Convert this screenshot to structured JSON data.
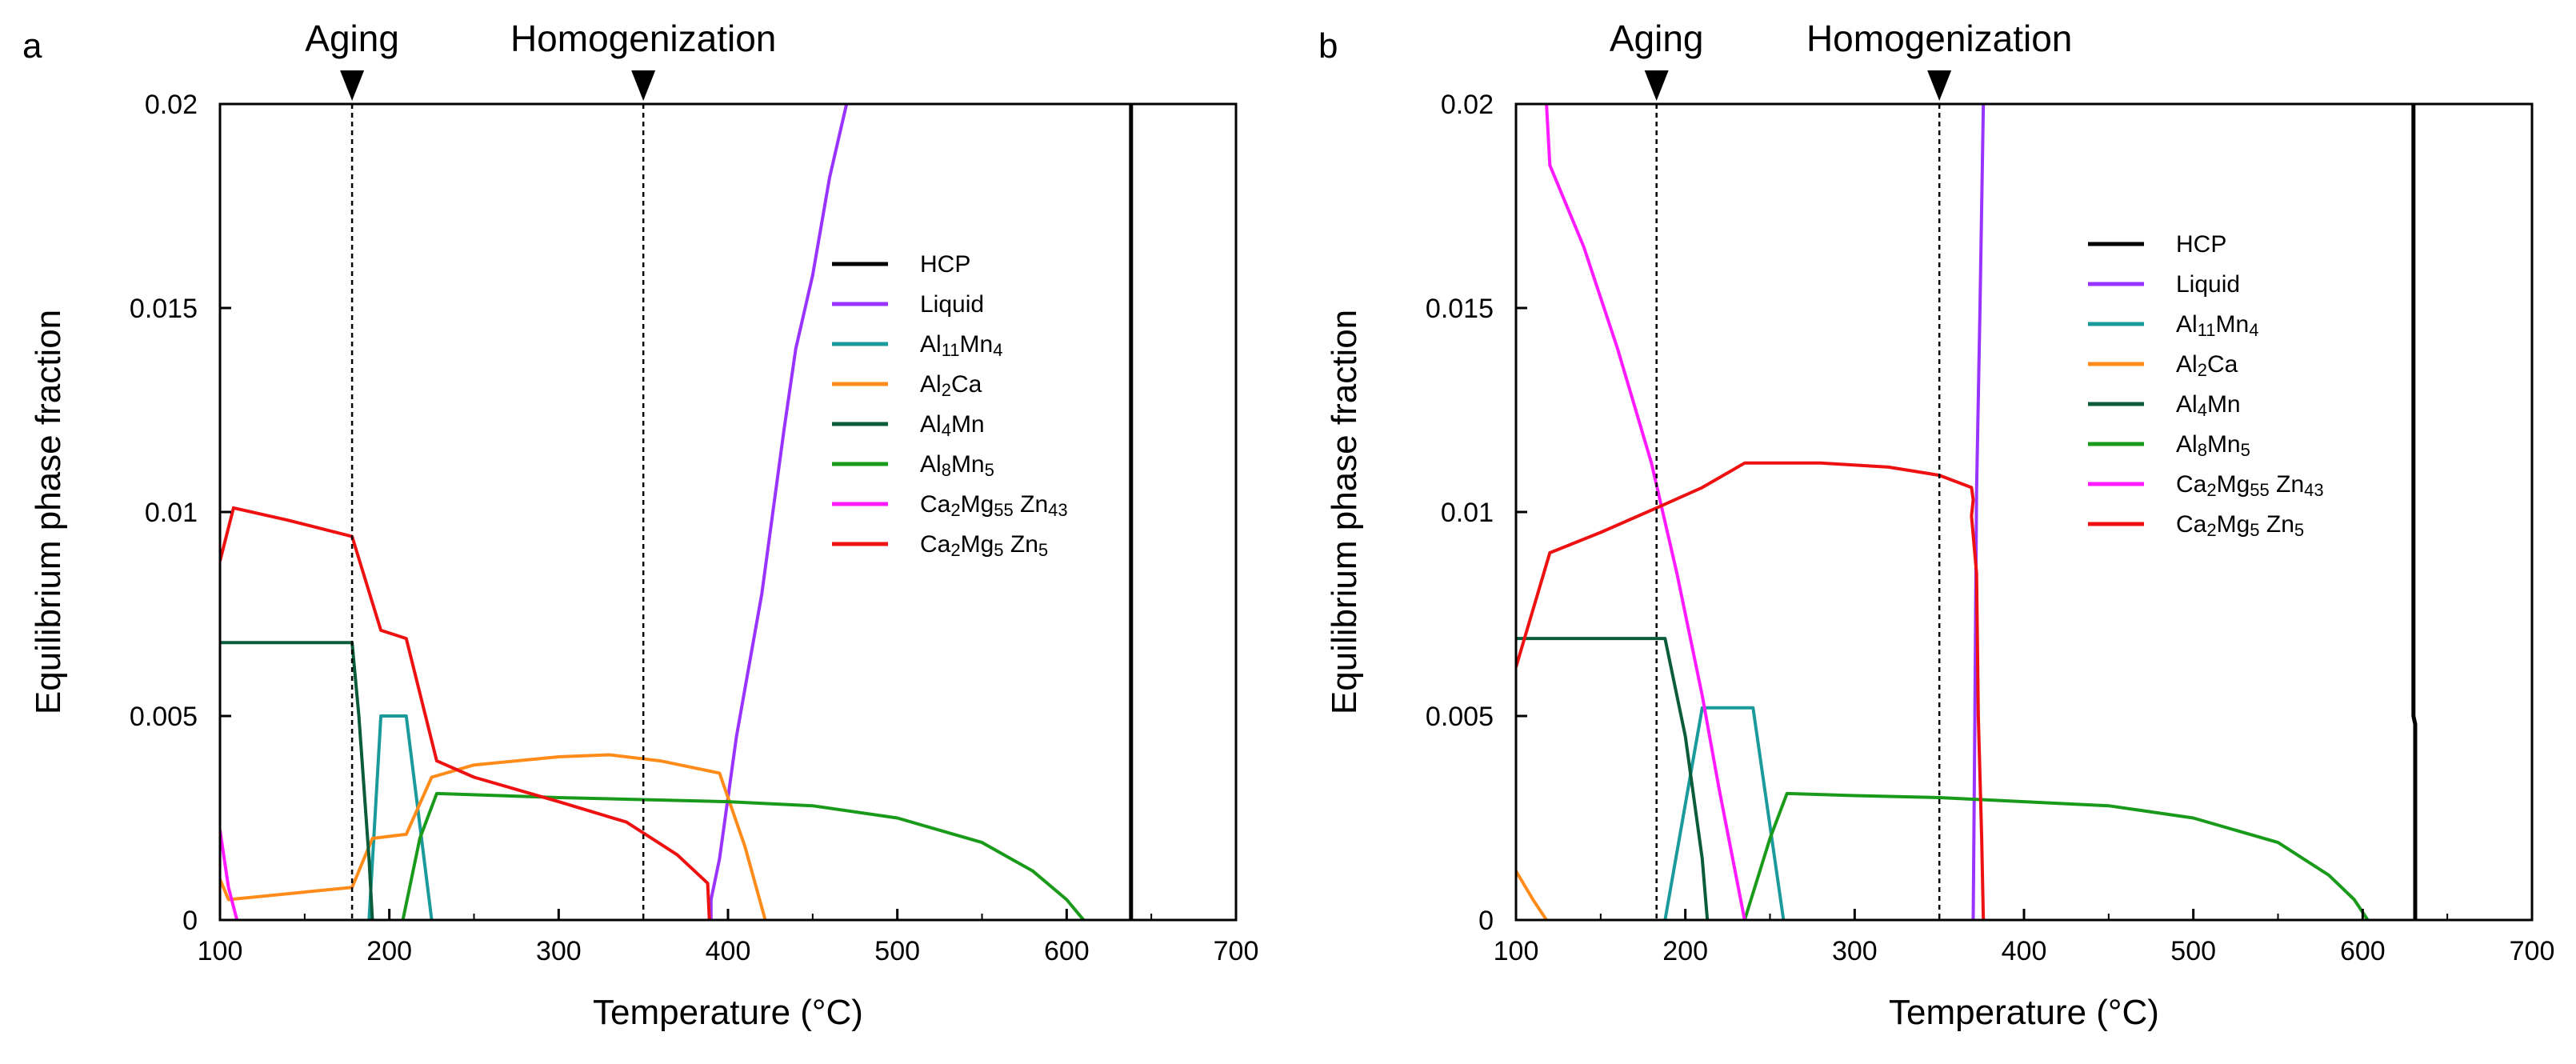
{
  "chart_data": [
    {
      "type": "line",
      "panel_label": "a",
      "xlabel": "Temperature (°C)",
      "ylabel": "Equilibrium phase fraction",
      "xlim": [
        100,
        700
      ],
      "ylim": [
        0,
        0.02
      ],
      "x_ticks": [
        "100",
        "200",
        "300",
        "400",
        "500",
        "600",
        "700"
      ],
      "y_ticks": [
        "0",
        "0.005",
        "0.01",
        "0.015",
        "0.02"
      ],
      "grid": false,
      "legend_position": "right",
      "annotations": [
        {
          "label": "Aging",
          "x": 178
        },
        {
          "label": "Homogenization",
          "x": 350
        }
      ],
      "series": [
        {
          "name": "HCP",
          "sub": "",
          "color": "#000000",
          "points": [
            [
              638,
              0
            ],
            [
              638,
              0.02
            ]
          ]
        },
        {
          "name": "Liquid",
          "sub": "",
          "color": "#9933ff",
          "points": [
            [
              390,
              0
            ],
            [
              390,
              0.0005
            ],
            [
              395,
              0.0015
            ],
            [
              405,
              0.0045
            ],
            [
              420,
              0.008
            ],
            [
              433,
              0.012
            ],
            [
              440,
              0.014
            ],
            [
              450,
              0.0158
            ],
            [
              460,
              0.0182
            ],
            [
              470,
              0.02
            ]
          ]
        },
        {
          "name": "Al11Mn4",
          "sub": "Al<sub>11</sub>Mn<sub>4</sub>",
          "color": "#1a9a9a",
          "points": [
            [
              188,
              0
            ],
            [
              195,
              0.005
            ],
            [
              210,
              0.005
            ],
            [
              225,
              0
            ]
          ]
        },
        {
          "name": "Al2Ca",
          "sub": "Al<sub>2</sub>Ca",
          "color": "#ff8c1a",
          "points": [
            [
              100,
              0.001
            ],
            [
              105,
              0.0005
            ],
            [
              178,
              0.0008
            ],
            [
              190,
              0.002
            ],
            [
              210,
              0.0021
            ],
            [
              225,
              0.0035
            ],
            [
              250,
              0.0038
            ],
            [
              300,
              0.004
            ],
            [
              330,
              0.00405
            ],
            [
              360,
              0.0039
            ],
            [
              395,
              0.0036
            ],
            [
              410,
              0.0018
            ],
            [
              422,
              0
            ]
          ]
        },
        {
          "name": "Al4Mn",
          "sub": "Al<sub>4</sub>Mn",
          "color": "#0a5c3a",
          "points": [
            [
              100,
              0.0068
            ],
            [
              178,
              0.0068
            ],
            [
              182,
              0.005
            ],
            [
              188,
              0.0015
            ],
            [
              190,
              0
            ]
          ]
        },
        {
          "name": "Al8Mn5",
          "sub": "Al<sub>8</sub>Mn<sub>5</sub>",
          "color": "#1a9a1a",
          "points": [
            [
              208,
              0
            ],
            [
              218,
              0.002
            ],
            [
              228,
              0.0031
            ],
            [
              300,
              0.003
            ],
            [
              400,
              0.0029
            ],
            [
              450,
              0.0028
            ],
            [
              500,
              0.0025
            ],
            [
              550,
              0.0019
            ],
            [
              580,
              0.0012
            ],
            [
              600,
              0.0005
            ],
            [
              610,
              0
            ]
          ]
        },
        {
          "name": "Ca2Mg55Zn43",
          "sub": "Ca<sub>2</sub>Mg<sub>55</sub> Zn<sub>43</sub>",
          "color": "#ff1aff",
          "points": [
            [
              100,
              0.0022
            ],
            [
              105,
              0.0008
            ],
            [
              110,
              0
            ]
          ]
        },
        {
          "name": "Ca2Mg5Zn5",
          "sub": "Ca<sub>2</sub>Mg<sub>5</sub> Zn<sub>5</sub>",
          "color": "#ee1111",
          "points": [
            [
              100,
              0.0088
            ],
            [
              108,
              0.0101
            ],
            [
              140,
              0.0098
            ],
            [
              178,
              0.0094
            ],
            [
              195,
              0.0071
            ],
            [
              210,
              0.0069
            ],
            [
              228,
              0.0039
            ],
            [
              250,
              0.0035
            ],
            [
              300,
              0.0029
            ],
            [
              340,
              0.0024
            ],
            [
              370,
              0.0016
            ],
            [
              388,
              0.0009
            ],
            [
              389,
              0
            ]
          ]
        }
      ]
    },
    {
      "type": "line",
      "panel_label": "b",
      "xlabel": "Temperature (°C)",
      "ylabel": "Equilibrium phase fraction",
      "xlim": [
        100,
        700
      ],
      "ylim": [
        0,
        0.02
      ],
      "x_ticks": [
        "100",
        "200",
        "300",
        "400",
        "500",
        "600",
        "700"
      ],
      "y_ticks": [
        "0",
        "0.005",
        "0.01",
        "0.015",
        "0.02"
      ],
      "grid": false,
      "legend_position": "right",
      "annotations": [
        {
          "label": "Aging",
          "x": 183
        },
        {
          "label": "Homogenization",
          "x": 350
        }
      ],
      "series": [
        {
          "name": "HCP",
          "sub": "",
          "color": "#000000",
          "points": [
            [
              631,
              0
            ],
            [
              631,
              0.0048
            ],
            [
              630,
              0.005
            ],
            [
              630,
              0.02
            ]
          ]
        },
        {
          "name": "Liquid",
          "sub": "",
          "color": "#9933ff",
          "points": [
            [
              370,
              0
            ],
            [
              371,
              0.005
            ],
            [
              372,
              0.0105
            ],
            [
              374,
              0.015
            ],
            [
              376,
              0.02
            ]
          ]
        },
        {
          "name": "Al11Mn4",
          "sub": "Al<sub>11</sub>Mn<sub>4</sub>",
          "color": "#1a9a9a",
          "points": [
            [
              188,
              0
            ],
            [
              210,
              0.0052
            ],
            [
              240,
              0.0052
            ],
            [
              258,
              0
            ]
          ]
        },
        {
          "name": "Al2Ca",
          "sub": "Al<sub>2</sub>Ca",
          "color": "#ff8c1a",
          "points": [
            [
              100,
              0.0012
            ],
            [
              110,
              0.0005
            ],
            [
              118,
              0
            ]
          ]
        },
        {
          "name": "Al4Mn",
          "sub": "Al<sub>4</sub>Mn",
          "color": "#0a5c3a",
          "points": [
            [
              100,
              0.0069
            ],
            [
              188,
              0.0069
            ],
            [
              200,
              0.0045
            ],
            [
              210,
              0.0015
            ],
            [
              213,
              0
            ]
          ]
        },
        {
          "name": "Al8Mn5",
          "sub": "Al<sub>8</sub>Mn<sub>5</sub>",
          "color": "#1a9a1a",
          "points": [
            [
              235,
              0
            ],
            [
              250,
              0.002
            ],
            [
              260,
              0.0031
            ],
            [
              300,
              0.00305
            ],
            [
              350,
              0.003
            ],
            [
              400,
              0.0029
            ],
            [
              450,
              0.0028
            ],
            [
              500,
              0.0025
            ],
            [
              550,
              0.0019
            ],
            [
              580,
              0.0011
            ],
            [
              595,
              0.0005
            ],
            [
              603,
              0
            ]
          ]
        },
        {
          "name": "Ca2Mg55Zn43",
          "sub": "Ca<sub>2</sub>Mg<sub>55</sub> Zn<sub>43</sub>",
          "color": "#ff1aff",
          "points": [
            [
              118,
              0.02
            ],
            [
              120,
              0.0185
            ],
            [
              140,
              0.0165
            ],
            [
              160,
              0.014
            ],
            [
              180,
              0.0112
            ],
            [
              195,
              0.0085
            ],
            [
              210,
              0.0055
            ],
            [
              220,
              0.0032
            ],
            [
              235,
              0
            ]
          ]
        },
        {
          "name": "Ca2Mg5Zn5",
          "sub": "Ca<sub>2</sub>Mg<sub>5</sub> Zn<sub>5</sub>",
          "color": "#ee1111",
          "points": [
            [
              100,
              0.0062
            ],
            [
              120,
              0.009
            ],
            [
              150,
              0.0095
            ],
            [
              183,
              0.0101
            ],
            [
              210,
              0.0106
            ],
            [
              235,
              0.0112
            ],
            [
              280,
              0.0112
            ],
            [
              320,
              0.0111
            ],
            [
              350,
              0.0109
            ],
            [
              369,
              0.0106
            ],
            [
              370,
              0.0103
            ],
            [
              369,
              0.0099
            ],
            [
              372,
              0.0085
            ],
            [
              373,
              0.005
            ],
            [
              375,
              0.002
            ],
            [
              376,
              0
            ]
          ]
        }
      ]
    }
  ]
}
